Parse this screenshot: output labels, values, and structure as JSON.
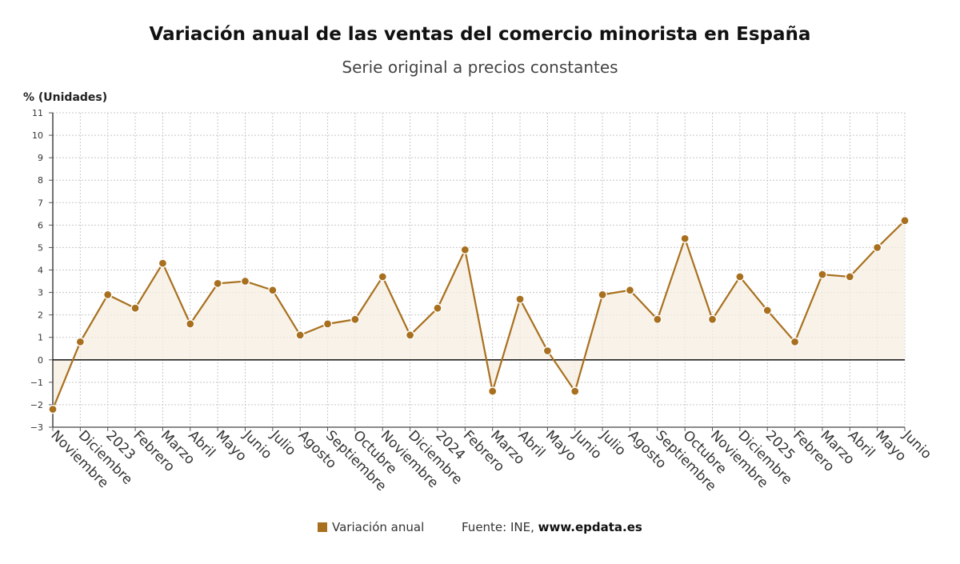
{
  "header": {
    "title": "Variación anual de las ventas del comercio minorista en España",
    "subtitle": "Serie original a precios constantes"
  },
  "chart_data": {
    "type": "line",
    "title": "Variación anual de las ventas del comercio minorista en España",
    "subtitle": "Serie original a precios constantes",
    "xlabel": "",
    "ylabel": "% (Unidades)",
    "ylim": [
      -3,
      11
    ],
    "yticks": [
      -3,
      -2,
      -1,
      0,
      1,
      2,
      3,
      4,
      5,
      6,
      7,
      8,
      9,
      10,
      11
    ],
    "yticklabels": [
      "−3",
      "−2",
      "−1",
      "0",
      "1",
      "2",
      "3",
      "4",
      "5",
      "6",
      "7",
      "8",
      "9",
      "10",
      "11"
    ],
    "grid": true,
    "categories": [
      "Noviembre",
      "Diciembre",
      "2023",
      "Febrero",
      "Marzo",
      "Abril",
      "Mayo",
      "Junio",
      "Julio",
      "Agosto",
      "Septiembre",
      "Octubre",
      "Noviembre",
      "Diciembre",
      "2024",
      "Febrero",
      "Marzo",
      "Abril",
      "Mayo",
      "Junio",
      "Julio",
      "Agosto",
      "Septiembre",
      "Octubre",
      "Noviembre",
      "Diciembre",
      "2025",
      "Febrero",
      "Marzo",
      "Abril",
      "Mayo",
      "Junio"
    ],
    "series": [
      {
        "name": "Variación anual",
        "color": "#a8701e",
        "values": [
          -2.2,
          0.8,
          2.9,
          2.3,
          4.3,
          1.6,
          3.4,
          3.5,
          3.1,
          1.1,
          1.6,
          1.8,
          3.7,
          1.1,
          2.3,
          4.9,
          -1.4,
          2.7,
          0.4,
          -1.4,
          2.9,
          3.1,
          1.8,
          5.4,
          1.8,
          3.7,
          2.2,
          0.8,
          3.8,
          3.7,
          5.0,
          6.2
        ]
      }
    ]
  },
  "legend": {
    "label": "Variación anual",
    "color": "#a8701e"
  },
  "footer": {
    "source_prefix": "Fuente: INE,",
    "source_link": "www.epdata.es"
  }
}
